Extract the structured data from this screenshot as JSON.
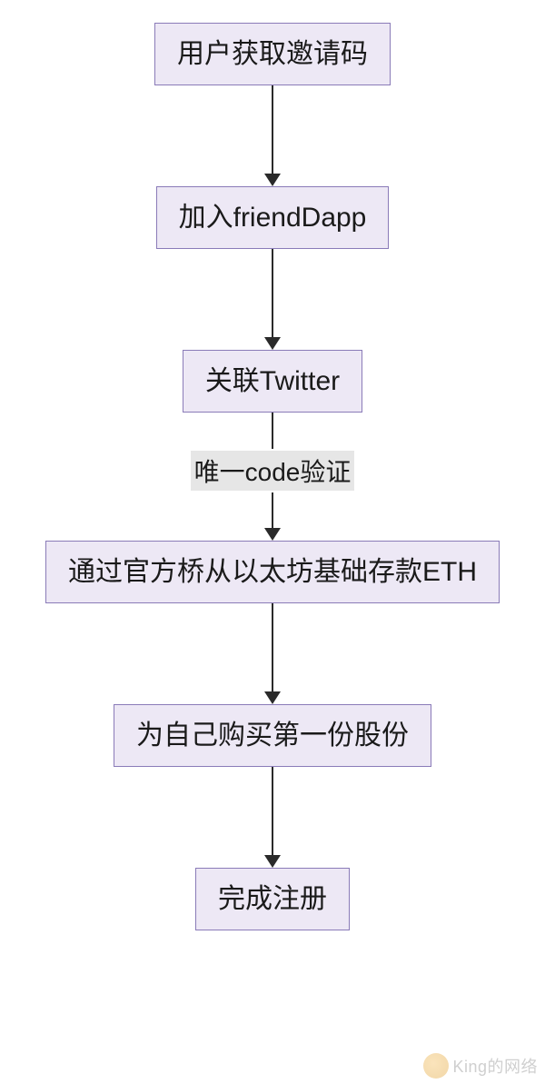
{
  "flowchart": {
    "type": "flowchart",
    "background_color": "#ffffff",
    "node_fill": "#ede8f5",
    "node_border": "#8a7bb8",
    "node_border_width": 1.5,
    "text_color": "#1a1a1a",
    "arrow_color": "#2a2a2a",
    "edge_label_bg": "#e6e6e6",
    "nodes": [
      {
        "id": "n1",
        "label": "用户获取邀请码",
        "fontsize": 30
      },
      {
        "id": "n2",
        "label": "加入friendDapp",
        "fontsize": 30
      },
      {
        "id": "n3",
        "label": "关联Twitter",
        "fontsize": 30
      },
      {
        "id": "n4",
        "label": "通过官方桥从以太坊基础存款ETH",
        "fontsize": 30
      },
      {
        "id": "n5",
        "label": "为自己购买第一份股份",
        "fontsize": 30
      },
      {
        "id": "n6",
        "label": "完成注册",
        "fontsize": 30
      }
    ],
    "edges": [
      {
        "from": "n1",
        "to": "n2",
        "length": 98,
        "line_width": 2.5
      },
      {
        "from": "n2",
        "to": "n3",
        "length": 98,
        "line_width": 2.5
      },
      {
        "from": "n3",
        "to": "n4",
        "label": "唯一code验证",
        "label_fontsize": 28,
        "length_before": 40,
        "length_after": 40,
        "line_width": 2.5
      },
      {
        "from": "n4",
        "to": "n5",
        "length": 98,
        "line_width": 2.5
      },
      {
        "from": "n5",
        "to": "n6",
        "length": 98,
        "line_width": 2.5
      }
    ]
  },
  "watermark": {
    "text": "King的网络",
    "color": "#bbbbbb",
    "fontsize": 18
  }
}
